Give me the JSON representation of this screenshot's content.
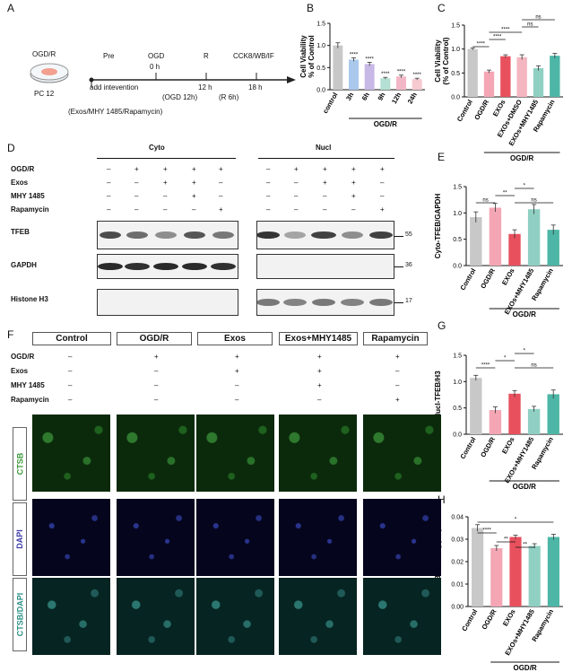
{
  "panelA": {
    "letter": "A",
    "model": "OGD/R",
    "cell": "PC 12",
    "steps": [
      "Pre",
      "OGD",
      "R",
      "CCK8/WB/IF"
    ],
    "times": [
      "0 h",
      "12 h",
      "18 h"
    ],
    "sub1": "add intevention",
    "sub2": "(OGD 12h)",
    "sub3": "(R 6h)",
    "agents": "(Exos/MHY 1485/Rapamycin)"
  },
  "panelB": {
    "letter": "B"
  },
  "panelC": {
    "letter": "C"
  },
  "panelD": {
    "letter": "D",
    "cyto": "Cyto",
    "nucl": "Nucl",
    "rows": [
      "OGD/R",
      "Exos",
      "MHY 1485",
      "Rapamycin"
    ],
    "bands": [
      "TFEB",
      "GAPDH",
      "Histone H3"
    ],
    "mw": [
      "55",
      "36",
      "17"
    ],
    "cyto_signs": [
      [
        "–",
        "+",
        "+",
        "+",
        "+"
      ],
      [
        "–",
        "–",
        "+",
        "+",
        "–"
      ],
      [
        "–",
        "–",
        "–",
        "+",
        "–"
      ],
      [
        "–",
        "–",
        "–",
        "–",
        "+"
      ]
    ],
    "nucl_signs": [
      [
        "–",
        "+",
        "+",
        "+",
        "+"
      ],
      [
        "–",
        "–",
        "+",
        "+",
        "–"
      ],
      [
        "–",
        "–",
        "–",
        "+",
        "–"
      ],
      [
        "–",
        "–",
        "–",
        "–",
        "+"
      ]
    ]
  },
  "panelE": {
    "letter": "E"
  },
  "panelF": {
    "letter": "F",
    "groups": [
      "Control",
      "OGD/R",
      "Exos",
      "Exos+MHY1485",
      "Rapamycin"
    ],
    "rows": [
      "OGD/R",
      "Exos",
      "MHY 1485",
      "Rapamycin"
    ],
    "signs": [
      [
        "–",
        "+",
        "+",
        "+",
        "+"
      ],
      [
        "–",
        "–",
        "+",
        "+",
        "–"
      ],
      [
        "–",
        "–",
        "–",
        "+",
        "–"
      ],
      [
        "–",
        "–",
        "–",
        "–",
        "+"
      ]
    ],
    "channels": [
      "CTSB",
      "DAPI",
      "CTSB/DAPI"
    ]
  },
  "panelG": {
    "letter": "G"
  },
  "panelH": {
    "letter": "H"
  },
  "colors": {
    "control": "#c8c8c8",
    "ogdr": "#f4a6b4",
    "exos": "#e8505e",
    "mhy": "#8fd0c3",
    "rapa": "#4db6a6",
    "dmso": "#f4b6c0",
    "pink_light": "#f7c9d0"
  },
  "chart_data": [
    {
      "id": "B",
      "type": "bar",
      "ylabel": "Cell Viability\n% of Control",
      "categories": [
        "control",
        "3h",
        "6h",
        "9h",
        "12h",
        "24h"
      ],
      "values": [
        1.0,
        0.68,
        0.58,
        0.26,
        0.3,
        0.24
      ],
      "errors": [
        0.06,
        0.04,
        0.04,
        0.02,
        0.03,
        0.02
      ],
      "sig": [
        "",
        "****",
        "****",
        "****",
        "****",
        "****"
      ],
      "ylim": [
        0,
        1.5
      ],
      "yticks": [
        0.0,
        0.5,
        1.0,
        1.5
      ],
      "group": "OGD/R"
    },
    {
      "id": "C",
      "type": "bar",
      "ylabel": "Cell Viability\n(% of Control)",
      "categories": [
        "Control",
        "OGD/R",
        "EXOs",
        "EXOs+DMSO",
        "EXOs+MHY1485",
        "Rapamycin"
      ],
      "values": [
        1.0,
        0.53,
        0.85,
        0.83,
        0.6,
        0.86
      ],
      "errors": [
        0.02,
        0.03,
        0.03,
        0.05,
        0.05,
        0.05
      ],
      "ylim": [
        0,
        1.5
      ],
      "yticks": [
        0.0,
        0.5,
        1.0,
        1.5
      ],
      "group": "OGD/R",
      "comparisons": [
        "****",
        "****",
        "****",
        "ns",
        "ns"
      ]
    },
    {
      "id": "E",
      "type": "bar",
      "ylabel": "Cyto-TFEB/GAPDH",
      "categories": [
        "Control",
        "OGD/R",
        "EXOs",
        "EXOs+MHY1485",
        "Rapamycin"
      ],
      "values": [
        0.92,
        1.1,
        0.6,
        1.07,
        0.68
      ],
      "errors": [
        0.1,
        0.08,
        0.08,
        0.09,
        0.09
      ],
      "ylim": [
        0,
        1.5
      ],
      "yticks": [
        0.0,
        0.5,
        1.0,
        1.5
      ],
      "group": "OGD/R",
      "comparisons": [
        "ns",
        "**",
        "*",
        "ns"
      ]
    },
    {
      "id": "G",
      "type": "bar",
      "ylabel": "Nucl-TFEB/H3",
      "categories": [
        "Control",
        "OGD/R",
        "EXOs",
        "EXOs+MHY1485",
        "Rapamycin"
      ],
      "values": [
        1.07,
        0.46,
        0.77,
        0.48,
        0.76
      ],
      "errors": [
        0.05,
        0.06,
        0.06,
        0.05,
        0.08
      ],
      "ylim": [
        0,
        1.5
      ],
      "yticks": [
        0.0,
        0.5,
        1.0,
        1.5
      ],
      "group": "OGD/R",
      "comparisons": [
        "****",
        "*",
        "*",
        "ns"
      ]
    },
    {
      "id": "H",
      "type": "bar",
      "ylabel": "CTSB Intensity(AU)",
      "categories": [
        "Control",
        "OGD/R",
        "EXOs",
        "EXOs+MHY1485",
        "Rapamycin"
      ],
      "values": [
        0.035,
        0.026,
        0.031,
        0.027,
        0.031
      ],
      "errors": [
        0.0015,
        0.0012,
        0.0008,
        0.001,
        0.0012
      ],
      "ylim": [
        0,
        0.04
      ],
      "yticks": [
        0.0,
        0.01,
        0.02,
        0.03,
        0.04
      ],
      "group": "OGD/R",
      "comparisons": [
        "****",
        "**",
        "**",
        "*"
      ]
    }
  ]
}
